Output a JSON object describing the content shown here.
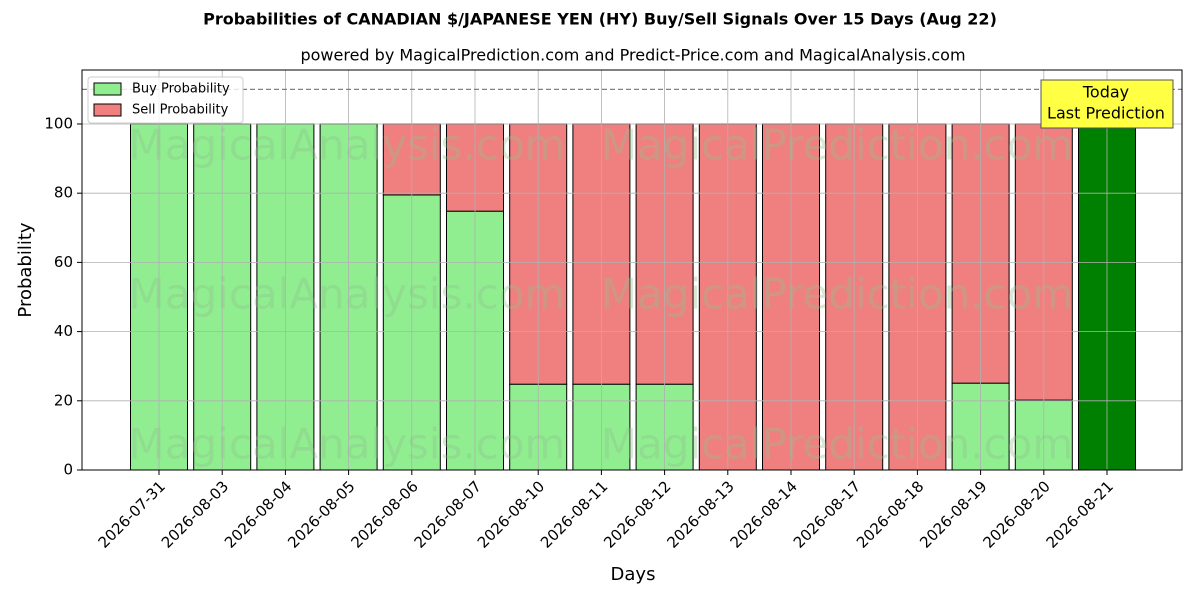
{
  "chart_data": {
    "type": "stacked_bar",
    "title": "Probabilities of CANADIAN $/JAPANESE YEN (HY) Buy/Sell Signals Over 15 Days (Aug 22)",
    "subtitle": "powered by MagicalPrediction.com and Predict-Price.com and MagicalAnalysis.com",
    "x_label": "Days",
    "y_label": "Probability",
    "categories": [
      "2026-07-31",
      "2026-08-03",
      "2026-08-04",
      "2026-08-05",
      "2026-08-06",
      "2026-08-07",
      "2026-08-10",
      "2026-08-11",
      "2026-08-12",
      "2026-08-13",
      "2026-08-14",
      "2026-08-17",
      "2026-08-18",
      "2026-08-19",
      "2026-08-20",
      "2026-08-21"
    ],
    "series": [
      {
        "name": "Buy Probability",
        "color": "#90ee90",
        "bar_colors": [
          "#90ee90",
          "#90ee90",
          "#90ee90",
          "#90ee90",
          "#90ee90",
          "#90ee90",
          "#90ee90",
          "#90ee90",
          "#90ee90",
          "#90ee90",
          "#90ee90",
          "#90ee90",
          "#90ee90",
          "#90ee90",
          "#90ee90",
          "#008000"
        ],
        "values": [
          100,
          100,
          100,
          100,
          79.5,
          74.8,
          24.8,
          24.8,
          24.8,
          0,
          0,
          0,
          0,
          25.1,
          20.2,
          100
        ]
      },
      {
        "name": "Sell Probability",
        "color": "#f08080",
        "values": [
          0,
          0,
          0,
          0,
          20.5,
          25.2,
          75.2,
          75.2,
          75.2,
          100,
          100,
          100,
          100,
          74.9,
          79.8,
          0
        ]
      }
    ],
    "ylim": [
      0,
      115.6
    ],
    "yticks": [
      0,
      20,
      40,
      60,
      80,
      100
    ],
    "hline": 110,
    "grid": true,
    "legend": "upper left",
    "annotation": [
      "Today",
      "Last Prediction"
    ],
    "watermarks": [
      "MagicalAnalysis.com",
      "MagicalPrediction.com"
    ]
  }
}
